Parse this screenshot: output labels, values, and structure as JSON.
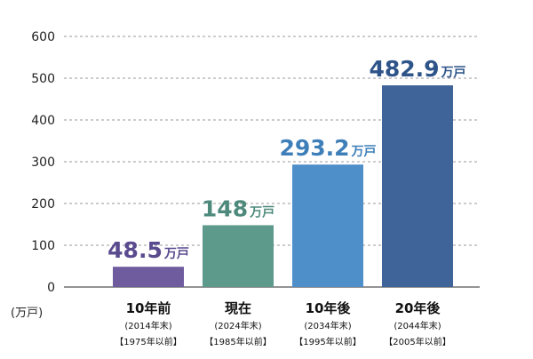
{
  "chart_data": {
    "type": "bar",
    "categories": [
      "10年前",
      "現在",
      "10年後",
      "20年後"
    ],
    "category_year_end": [
      "(2014年末)",
      "(2024年末)",
      "(2034年末)",
      "(2044年末)"
    ],
    "category_built_before": [
      "【1975年以前】",
      "【1985年以前】",
      "【1995年以前】",
      "【2005年以前】"
    ],
    "values": [
      48.5,
      148,
      293.2,
      482.9
    ],
    "value_labels": [
      "48.5",
      "148",
      "293.2",
      "482.9"
    ],
    "value_unit": "万戸",
    "ylabel": "(万戸)",
    "ylim": [
      0,
      600
    ],
    "yticks": [
      0,
      100,
      200,
      300,
      400,
      500,
      600
    ],
    "grid": true,
    "bar_colors": [
      "#6e5c9e",
      "#5e9a8c",
      "#4f8fc9",
      "#3e6499"
    ],
    "label_colors": [
      "#5a4a8e",
      "#4e8a7c",
      "#3f7fb9",
      "#2e5489"
    ]
  }
}
